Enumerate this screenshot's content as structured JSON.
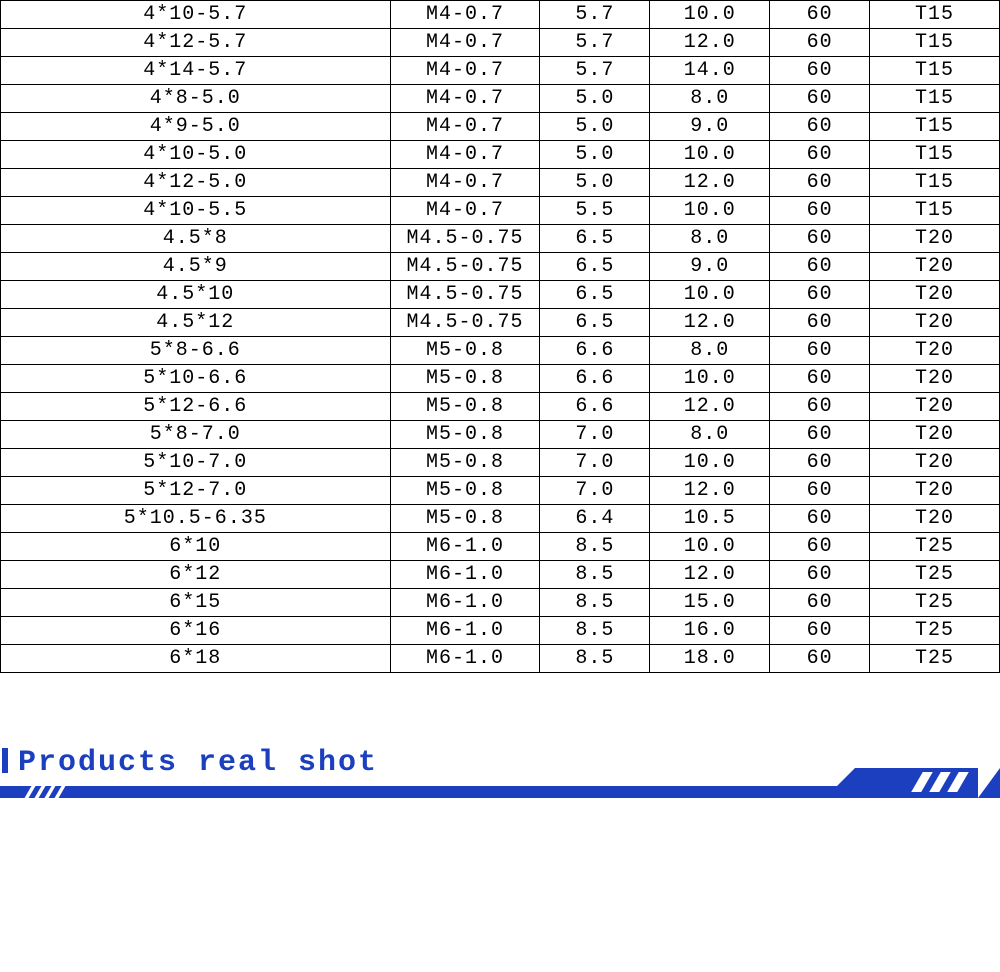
{
  "table": {
    "border_color": "#000000",
    "text_color": "#000000",
    "background_color": "#ffffff",
    "font_family": "Courier New",
    "font_size": 20,
    "columns": [
      {
        "index": 0,
        "width_pct": 39
      },
      {
        "index": 1,
        "width_pct": 15
      },
      {
        "index": 2,
        "width_pct": 11
      },
      {
        "index": 3,
        "width_pct": 12
      },
      {
        "index": 4,
        "width_pct": 10
      },
      {
        "index": 5,
        "width_pct": 13
      }
    ],
    "rows": [
      [
        "4*10-5.7",
        "M4-0.7",
        "5.7",
        "10.0",
        "60",
        "T15"
      ],
      [
        "4*12-5.7",
        "M4-0.7",
        "5.7",
        "12.0",
        "60",
        "T15"
      ],
      [
        "4*14-5.7",
        "M4-0.7",
        "5.7",
        "14.0",
        "60",
        "T15"
      ],
      [
        "4*8-5.0",
        "M4-0.7",
        "5.0",
        "8.0",
        "60",
        "T15"
      ],
      [
        "4*9-5.0",
        "M4-0.7",
        "5.0",
        "9.0",
        "60",
        "T15"
      ],
      [
        "4*10-5.0",
        "M4-0.7",
        "5.0",
        "10.0",
        "60",
        "T15"
      ],
      [
        "4*12-5.0",
        "M4-0.7",
        "5.0",
        "12.0",
        "60",
        "T15"
      ],
      [
        "4*10-5.5",
        "M4-0.7",
        "5.5",
        "10.0",
        "60",
        "T15"
      ],
      [
        "4.5*8",
        "M4.5-0.75",
        "6.5",
        "8.0",
        "60",
        "T20"
      ],
      [
        "4.5*9",
        "M4.5-0.75",
        "6.5",
        "9.0",
        "60",
        "T20"
      ],
      [
        "4.5*10",
        "M4.5-0.75",
        "6.5",
        "10.0",
        "60",
        "T20"
      ],
      [
        "4.5*12",
        "M4.5-0.75",
        "6.5",
        "12.0",
        "60",
        "T20"
      ],
      [
        "5*8-6.6",
        "M5-0.8",
        "6.6",
        "8.0",
        "60",
        "T20"
      ],
      [
        "5*10-6.6",
        "M5-0.8",
        "6.6",
        "10.0",
        "60",
        "T20"
      ],
      [
        "5*12-6.6",
        "M5-0.8",
        "6.6",
        "12.0",
        "60",
        "T20"
      ],
      [
        "5*8-7.0",
        "M5-0.8",
        "7.0",
        "8.0",
        "60",
        "T20"
      ],
      [
        "5*10-7.0",
        "M5-0.8",
        "7.0",
        "10.0",
        "60",
        "T20"
      ],
      [
        "5*12-7.0",
        "M5-0.8",
        "7.0",
        "12.0",
        "60",
        "T20"
      ],
      [
        "5*10.5-6.35",
        "M5-0.8",
        "6.4",
        "10.5",
        "60",
        "T20"
      ],
      [
        "6*10",
        "M6-1.0",
        "8.5",
        "10.0",
        "60",
        "T25"
      ],
      [
        "6*12",
        "M6-1.0",
        "8.5",
        "12.0",
        "60",
        "T25"
      ],
      [
        "6*15",
        "M6-1.0",
        "8.5",
        "15.0",
        "60",
        "T25"
      ],
      [
        "6*16",
        "M6-1.0",
        "8.5",
        "16.0",
        "60",
        "T25"
      ],
      [
        "6*18",
        "M6-1.0",
        "8.5",
        "18.0",
        "60",
        "T25"
      ]
    ]
  },
  "section": {
    "title": "Products real shot",
    "accent_color": "#1c3fbf",
    "title_fontsize": 30,
    "title_font_family": "Courier New",
    "title_font_weight": "bold"
  }
}
